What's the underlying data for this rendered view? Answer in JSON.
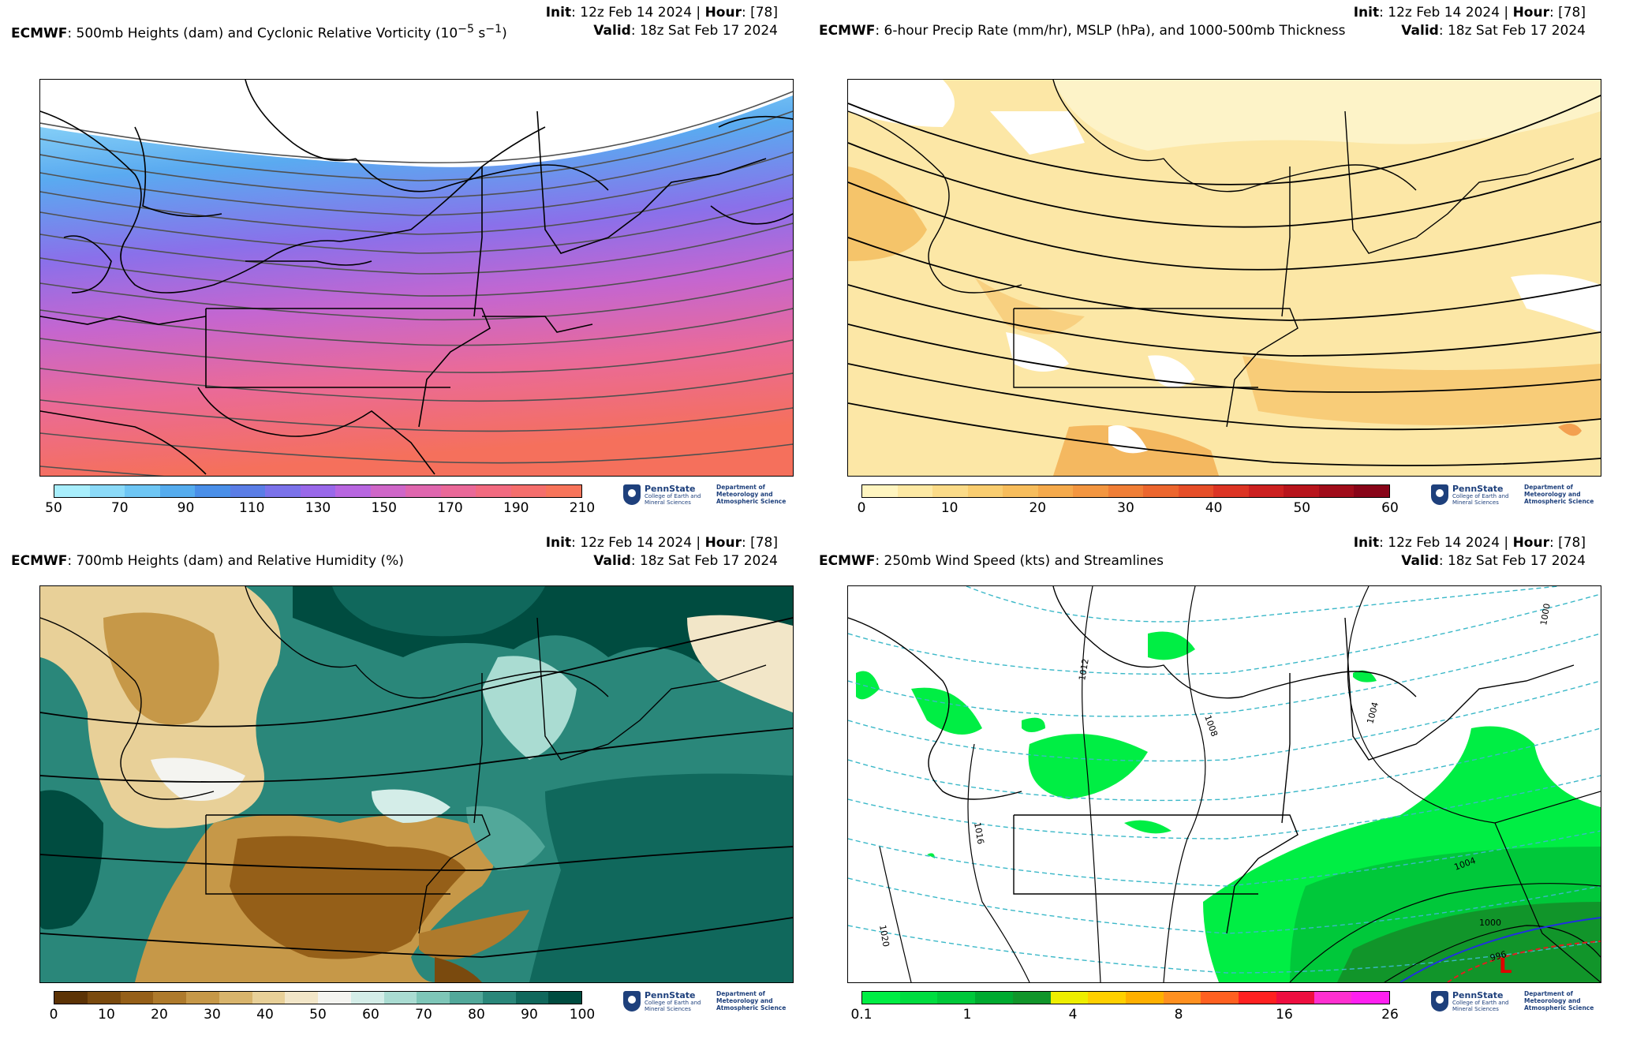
{
  "panels": [
    {
      "model": "ECMWF",
      "title": ": 500mb Heights (dam) and Cyclonic Relative Vorticity (10",
      "title_sup1": "−5",
      "title_mid": " s",
      "title_sup2": "−1",
      "title_end": ")",
      "init_label": "Init",
      "init_value": ": 12z Feb 14 2024 | ",
      "hour_label": "Hour",
      "hour_value": ": [78]",
      "valid_label": "Valid",
      "valid_value": ": 18z Sat Feb 17 2024",
      "colorbar": {
        "colors": [
          "#a8eefc",
          "#8bdaf8",
          "#6ec6f4",
          "#55acee",
          "#4a8fe8",
          "#5a7de6",
          "#7b72ea",
          "#9968ea",
          "#b866e0",
          "#cf66c8",
          "#df66ae",
          "#ea6898",
          "#f26a80",
          "#f56e6c",
          "#f7745a"
        ],
        "ticks": [
          "50",
          "70",
          "90",
          "110",
          "130",
          "150",
          "170",
          "190",
          "210"
        ]
      }
    },
    {
      "model": "ECMWF",
      "title": ": 6-hour Precip Rate (mm/hr), MSLP (hPa), and 1000-500mb Thickness",
      "init_label": "Init",
      "init_value": ": 12z Feb 14 2024 | ",
      "hour_label": "Hour",
      "hour_value": ": [78]",
      "valid_label": "Valid",
      "valid_value": ": 18z Sat Feb 17 2024",
      "colorbar": {
        "colors": [
          "#fff5c0",
          "#fde9a4",
          "#fbdb88",
          "#f9cd70",
          "#f7bd5c",
          "#f5aa4c",
          "#f39640",
          "#f07e36",
          "#ec662e",
          "#e64e28",
          "#dc3424",
          "#cc2020",
          "#b8141c",
          "#a00c1a",
          "#880418"
        ],
        "ticks": [
          "0",
          "10",
          "20",
          "30",
          "40",
          "50",
          "60"
        ]
      }
    },
    {
      "model": "ECMWF",
      "title": ": 700mb Heights (dam) and Relative Humidity (%)",
      "init_label": "Init",
      "init_value": ": 12z Feb 14 2024 | ",
      "hour_label": "Hour",
      "hour_value": ": [78]",
      "valid_label": "Valid",
      "valid_value": ": 18z Sat Feb 17 2024",
      "colorbar": {
        "colors": [
          "#5c3305",
          "#7a4a0e",
          "#955f18",
          "#ae7a2c",
          "#c69848",
          "#d8b46c",
          "#e8d098",
          "#f2e6c8",
          "#f4f4f0",
          "#d4ede8",
          "#aadcd2",
          "#7ec6b8",
          "#52a89a",
          "#2a877a",
          "#10685c",
          "#004c40"
        ],
        "ticks": [
          "0",
          "10",
          "20",
          "30",
          "40",
          "50",
          "60",
          "70",
          "80",
          "90",
          "100"
        ]
      }
    },
    {
      "model": "ECMWF",
      "title": ": 250mb Wind Speed (kts) and Streamlines",
      "init_label": "Init",
      "init_value": ": 12z Feb 14 2024 | ",
      "hour_label": "Hour",
      "hour_value": ": [78]",
      "valid_label": "Valid",
      "valid_value": ": 18z Sat Feb 17 2024",
      "colorbar": {
        "colors": [
          "#00ee44",
          "#00dd40",
          "#00c83a",
          "#00aa30",
          "#11952a",
          "#eeee00",
          "#ffd000",
          "#ffb000",
          "#ff9020",
          "#ff6020",
          "#ff2020",
          "#ee0e40",
          "#ff30d0",
          "#ff20f0"
        ],
        "ticks": [
          "0.1",
          "1",
          "4",
          "8",
          "16",
          "26"
        ]
      },
      "contour_labels": [
        "1012",
        "1008",
        "1004",
        "1016",
        "1020",
        "1000",
        "1004",
        "1000",
        "996"
      ],
      "low_symbol": "L"
    }
  ],
  "logo": {
    "name": "PennState",
    "college": "College of Earth and Mineral Sciences",
    "department": "Department of Meteorology and Atmospheric Science"
  }
}
